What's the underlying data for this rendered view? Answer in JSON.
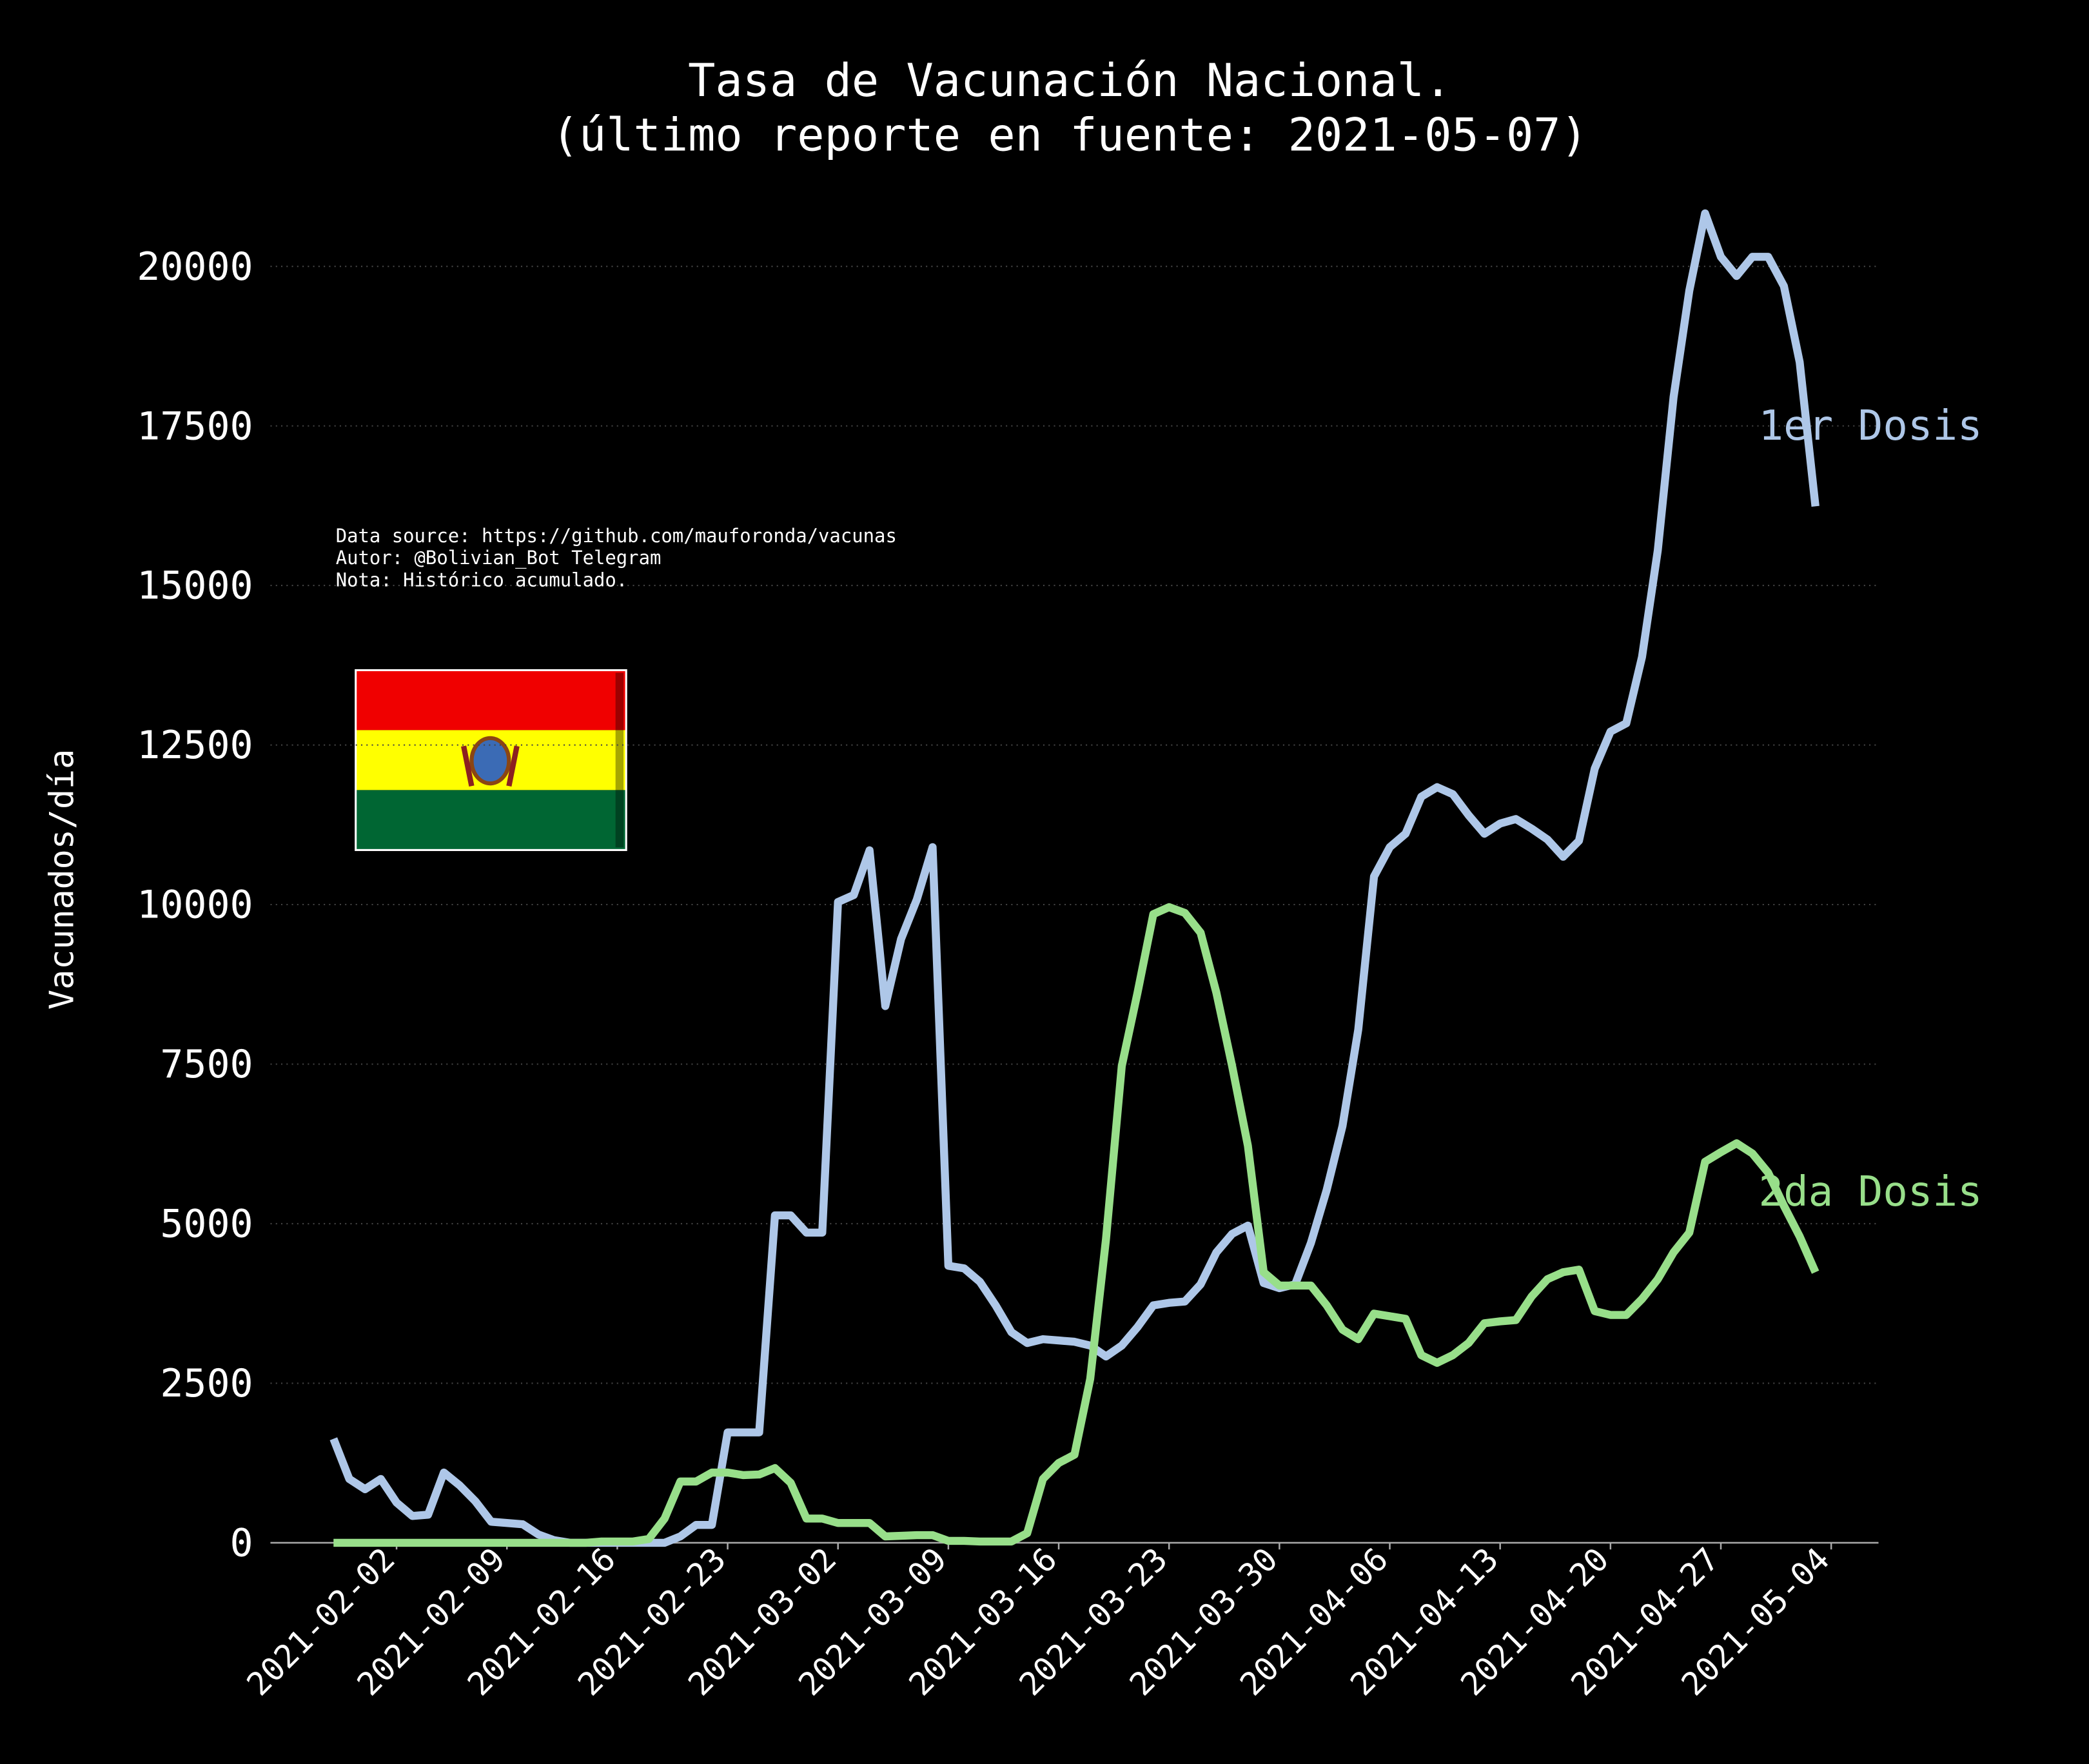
{
  "chart_data": {
    "type": "line",
    "title": "Tasa de Vacunación Nacional.",
    "subtitle": "(último reporte en fuente: 2021-05-07)",
    "y_label": "Vacunados/día",
    "annotation": [
      "Data source: https://github.com/mauforonda/vacunas",
      "Autor: @Bolivian_Bot Telegram",
      "Nota: Histórico acumulado."
    ],
    "x": [
      "2021-01-29",
      "2021-01-30",
      "2021-01-31",
      "2021-02-01",
      "2021-02-02",
      "2021-02-03",
      "2021-02-04",
      "2021-02-05",
      "2021-02-06",
      "2021-02-07",
      "2021-02-08",
      "2021-02-09",
      "2021-02-10",
      "2021-02-11",
      "2021-02-12",
      "2021-02-13",
      "2021-02-14",
      "2021-02-15",
      "2021-02-16",
      "2021-02-17",
      "2021-02-18",
      "2021-02-19",
      "2021-02-20",
      "2021-02-21",
      "2021-02-22",
      "2021-02-23",
      "2021-02-24",
      "2021-02-25",
      "2021-02-26",
      "2021-02-27",
      "2021-02-28",
      "2021-03-01",
      "2021-03-02",
      "2021-03-03",
      "2021-03-04",
      "2021-03-05",
      "2021-03-06",
      "2021-03-07",
      "2021-03-08",
      "2021-03-09",
      "2021-03-10",
      "2021-03-11",
      "2021-03-12",
      "2021-03-13",
      "2021-03-14",
      "2021-03-15",
      "2021-03-16",
      "2021-03-17",
      "2021-03-18",
      "2021-03-19",
      "2021-03-20",
      "2021-03-21",
      "2021-03-22",
      "2021-03-23",
      "2021-03-24",
      "2021-03-25",
      "2021-03-26",
      "2021-03-27",
      "2021-03-28",
      "2021-03-29",
      "2021-03-30",
      "2021-03-31",
      "2021-04-01",
      "2021-04-02",
      "2021-04-03",
      "2021-04-04",
      "2021-04-05",
      "2021-04-06",
      "2021-04-07",
      "2021-04-08",
      "2021-04-09",
      "2021-04-10",
      "2021-04-11",
      "2021-04-12",
      "2021-04-13",
      "2021-04-14",
      "2021-04-15",
      "2021-04-16",
      "2021-04-17",
      "2021-04-18",
      "2021-04-19",
      "2021-04-20",
      "2021-04-21",
      "2021-04-22",
      "2021-04-23",
      "2021-04-24",
      "2021-04-25",
      "2021-04-26",
      "2021-04-27",
      "2021-04-28",
      "2021-04-29",
      "2021-04-30",
      "2021-05-01",
      "2021-05-02",
      "2021-05-03"
    ],
    "series": [
      {
        "name": "1er Dosis",
        "color": "#aec7e8",
        "values": [
          1630,
          1000,
          840,
          1000,
          630,
          420,
          440,
          1100,
          900,
          650,
          330,
          310,
          290,
          130,
          40,
          0,
          0,
          0,
          0,
          0,
          0,
          0,
          100,
          280,
          280,
          1730,
          1730,
          1730,
          5130,
          5130,
          4860,
          4860,
          10040,
          10150,
          10850,
          8410,
          9460,
          10080,
          10900,
          4340,
          4300,
          4090,
          3720,
          3300,
          3130,
          3190,
          3170,
          3150,
          3090,
          2920,
          3090,
          3380,
          3720,
          3760,
          3780,
          4050,
          4550,
          4840,
          4970,
          4070,
          3990,
          4050,
          4700,
          5530,
          6530,
          8040,
          10440,
          10900,
          11110,
          11690,
          11840,
          11730,
          11400,
          11110,
          11270,
          11340,
          11190,
          11020,
          10750,
          11000,
          12130,
          12710,
          12840,
          13880,
          15550,
          17950,
          19620,
          20830,
          20150,
          19850,
          20150,
          20150,
          19690,
          18500,
          16240
        ]
      },
      {
        "name": "2da Dosis",
        "color": "#98df8a",
        "values": [
          0,
          0,
          0,
          0,
          0,
          0,
          0,
          0,
          0,
          0,
          0,
          0,
          0,
          0,
          0,
          0,
          0,
          20,
          20,
          20,
          60,
          380,
          960,
          960,
          1100,
          1100,
          1060,
          1070,
          1170,
          940,
          380,
          380,
          310,
          310,
          310,
          100,
          110,
          120,
          120,
          30,
          30,
          20,
          20,
          20,
          150,
          1000,
          1250,
          1380,
          2570,
          4760,
          7470,
          8620,
          9850,
          9960,
          9870,
          9560,
          8620,
          7470,
          6220,
          4240,
          4030,
          4030,
          4030,
          3720,
          3340,
          3190,
          3590,
          3550,
          3510,
          2940,
          2820,
          2940,
          3130,
          3440,
          3470,
          3490,
          3860,
          4130,
          4240,
          4280,
          3630,
          3570,
          3570,
          3820,
          4130,
          4550,
          4860,
          5970,
          6120,
          6260,
          6100,
          5800,
          5280,
          4800,
          4240
        ]
      }
    ],
    "xlim": [
      "2021-01-25",
      "2021-05-07"
    ],
    "xticks": [
      "2021-02-02",
      "2021-02-09",
      "2021-02-16",
      "2021-02-23",
      "2021-03-02",
      "2021-03-09",
      "2021-03-16",
      "2021-03-23",
      "2021-03-30",
      "2021-04-06",
      "2021-04-13",
      "2021-04-20",
      "2021-04-27",
      "2021-05-04"
    ],
    "ylim": [
      0,
      21000
    ],
    "yticks": [
      0,
      2500,
      5000,
      7500,
      10000,
      12500,
      15000,
      17500,
      20000
    ],
    "grid": true
  }
}
